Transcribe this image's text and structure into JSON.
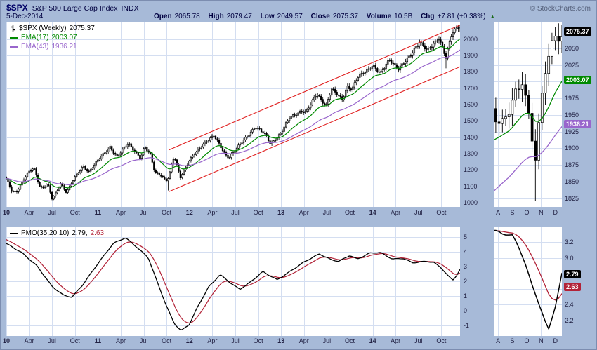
{
  "header": {
    "symbol": "$SPX",
    "name": "S&P 500 Large Cap Index",
    "exchange": "INDX",
    "copyright": "© StockCharts.com",
    "date": "5-Dec-2014",
    "quote": {
      "open_label": "Open",
      "open": "2065.78",
      "high_label": "High",
      "high": "2079.47",
      "low_label": "Low",
      "low": "2049.57",
      "close_label": "Close",
      "close": "2075.37",
      "volume_label": "Volume",
      "volume": "10.5B",
      "chg_label": "Chg",
      "chg": "+7.81 (+0.38%)",
      "arrow": "▲"
    }
  },
  "legend": {
    "price": {
      "title": "$SPX (Weekly)",
      "value": "2075.37"
    },
    "ema17": {
      "label": "EMA(17)",
      "value": "2003.07",
      "color": "#008A00"
    },
    "ema43": {
      "label": "EMA(43)",
      "value": "1936.21",
      "color": "#9966CC"
    },
    "pmo": {
      "label": "PMO(35,20,10)",
      "value": "2.79,",
      "signal_value": "2.63",
      "color": "#000000",
      "signal_color": "#B22237"
    }
  },
  "price_labels": {
    "close": {
      "text": "2075.37",
      "v": 2075.37,
      "bg": "#000000"
    },
    "ema17": {
      "text": "2003.07",
      "v": 2003.07,
      "bg": "#008A00"
    },
    "ema43": {
      "text": "1936.21",
      "v": 1936.21,
      "bg": "#9966CC"
    },
    "pmo": {
      "text": "2.79",
      "v": 2.79,
      "bg": "#000000"
    },
    "pmo_signal": {
      "text": "2.63",
      "v": 2.63,
      "bg": "#B22237"
    }
  },
  "chart_data": [
    {
      "id": "price_main",
      "type": "candlestick",
      "title": "$SPX (Weekly)",
      "x_unit": "months since Jan-2010",
      "x_range": [
        0,
        59.45
      ],
      "ylim": [
        975,
        2105
      ],
      "yticks": [
        2000,
        1900,
        1800,
        1700,
        1600,
        1500,
        1400,
        1300,
        1200,
        1100,
        1000
      ],
      "grid_month_step": 3,
      "xticks": [
        [
          "10",
          0,
          1
        ],
        [
          "Apr",
          3,
          0
        ],
        [
          "Jul",
          6,
          0
        ],
        [
          "Oct",
          9,
          0
        ],
        [
          "11",
          12,
          1
        ],
        [
          "Apr",
          15,
          0
        ],
        [
          "Jul",
          18,
          0
        ],
        [
          "Oct",
          21,
          0
        ],
        [
          "12",
          24,
          1
        ],
        [
          "Apr",
          27,
          0
        ],
        [
          "Jul",
          30,
          0
        ],
        [
          "Oct",
          33,
          0
        ],
        [
          "13",
          36,
          1
        ],
        [
          "Apr",
          39,
          0
        ],
        [
          "Jul",
          42,
          0
        ],
        [
          "Oct",
          45,
          0
        ],
        [
          "14",
          48,
          1
        ],
        [
          "Apr",
          51,
          0
        ],
        [
          "Jul",
          54,
          0
        ],
        [
          "Oct",
          57,
          0
        ]
      ],
      "close_anchors": [
        [
          0,
          1145
        ],
        [
          0.7,
          1074
        ],
        [
          1.3,
          1066
        ],
        [
          2.6,
          1166
        ],
        [
          3.6,
          1217
        ],
        [
          4.3,
          1111
        ],
        [
          4.7,
          1088
        ],
        [
          5.4,
          1118
        ],
        [
          6.0,
          1023
        ],
        [
          6.6,
          1065
        ],
        [
          7.1,
          1122
        ],
        [
          7.9,
          1065
        ],
        [
          8.9,
          1149
        ],
        [
          10.1,
          1226
        ],
        [
          10.8,
          1189
        ],
        [
          12.0,
          1258
        ],
        [
          13.6,
          1343
        ],
        [
          14.5,
          1279
        ],
        [
          16.0,
          1364
        ],
        [
          17.6,
          1272
        ],
        [
          18.1,
          1340
        ],
        [
          18.9,
          1292
        ],
        [
          19.4,
          1199
        ],
        [
          19.7,
          1179
        ],
        [
          20.2,
          1174
        ],
        [
          20.9,
          1131
        ],
        [
          21.3,
          1155
        ],
        [
          21.7,
          1238
        ],
        [
          22.0,
          1285
        ],
        [
          22.8,
          1159
        ],
        [
          24.0,
          1258
        ],
        [
          25.9,
          1366
        ],
        [
          27.2,
          1408
        ],
        [
          28.7,
          1295
        ],
        [
          29.2,
          1278
        ],
        [
          31.3,
          1391
        ],
        [
          32.6,
          1466
        ],
        [
          34.0,
          1412
        ],
        [
          34.6,
          1360
        ],
        [
          36.0,
          1426
        ],
        [
          37.1,
          1518
        ],
        [
          38.6,
          1561
        ],
        [
          39.3,
          1553
        ],
        [
          40.7,
          1667
        ],
        [
          41.9,
          1592
        ],
        [
          42.6,
          1692
        ],
        [
          44.0,
          1633
        ],
        [
          44.7,
          1710
        ],
        [
          45.3,
          1691
        ],
        [
          46.0,
          1762
        ],
        [
          48.0,
          1841
        ],
        [
          49.0,
          1783
        ],
        [
          50.2,
          1878
        ],
        [
          51.4,
          1816
        ],
        [
          52.6,
          1878
        ],
        [
          54.1,
          1985
        ],
        [
          55.2,
          1925
        ],
        [
          56.7,
          2010
        ],
        [
          57.6,
          1887
        ],
        [
          58.4,
          2032
        ],
        [
          59.1,
          2068
        ],
        [
          59.45,
          2075.37
        ]
      ],
      "low_overrides": [
        [
          21.2,
          1075
        ],
        [
          57.55,
          1821
        ]
      ],
      "last_close": 2075.37,
      "overlays": [
        {
          "name": "EMA(17)",
          "period": 17,
          "color": "#008A00",
          "last": 2003.07
        },
        {
          "name": "EMA(43)",
          "period": 43,
          "color": "#9966CC",
          "last": 1936.21
        }
      ],
      "trend_channel": {
        "color": "#E02020",
        "lines": [
          [
            [
              21.3,
              1068
            ],
            [
              59.45,
              1830
            ]
          ],
          [
            [
              21.3,
              1323
            ],
            [
              59.45,
              2085
            ]
          ]
        ]
      }
    },
    {
      "id": "pmo_main",
      "type": "line",
      "title": "PMO(35,20,10)",
      "x_range": [
        0,
        59.45
      ],
      "ylim": [
        -1.7,
        5.7
      ],
      "yticks": [
        5,
        4,
        3,
        2,
        1,
        0,
        -1
      ],
      "grid_month_step": 3,
      "xticks": [
        [
          "10",
          0,
          1
        ],
        [
          "Apr",
          3,
          0
        ],
        [
          "Jul",
          6,
          0
        ],
        [
          "Oct",
          9,
          0
        ],
        [
          "11",
          12,
          1
        ],
        [
          "Apr",
          15,
          0
        ],
        [
          "Jul",
          18,
          0
        ],
        [
          "Oct",
          21,
          0
        ],
        [
          "12",
          24,
          1
        ],
        [
          "Apr",
          27,
          0
        ],
        [
          "Jul",
          30,
          0
        ],
        [
          "Oct",
          33,
          0
        ],
        [
          "13",
          36,
          1
        ],
        [
          "Apr",
          39,
          0
        ],
        [
          "Jul",
          42,
          0
        ],
        [
          "Oct",
          45,
          0
        ],
        [
          "14",
          48,
          1
        ],
        [
          "Apr",
          51,
          0
        ],
        [
          "Jul",
          54,
          0
        ],
        [
          "Oct",
          57,
          0
        ]
      ],
      "anchors": [
        [
          0,
          4.55
        ],
        [
          2,
          3.95
        ],
        [
          4,
          3.05
        ],
        [
          6,
          1.65
        ],
        [
          7.5,
          1.05
        ],
        [
          8.6,
          0.92
        ],
        [
          10,
          1.75
        ],
        [
          12,
          3.2
        ],
        [
          14,
          4.55
        ],
        [
          15.6,
          4.95
        ],
        [
          17,
          4.35
        ],
        [
          18.6,
          3.6
        ],
        [
          19.6,
          2.2
        ],
        [
          21,
          0.3
        ],
        [
          22,
          -0.85
        ],
        [
          22.9,
          -1.35
        ],
        [
          24,
          -0.9
        ],
        [
          25,
          0.2
        ],
        [
          26.5,
          1.6
        ],
        [
          28,
          2.45
        ],
        [
          29.6,
          1.8
        ],
        [
          30.6,
          1.45
        ],
        [
          32,
          1.95
        ],
        [
          33.6,
          2.65
        ],
        [
          35.5,
          2.1
        ],
        [
          37,
          2.6
        ],
        [
          39,
          3.3
        ],
        [
          41,
          3.85
        ],
        [
          42.6,
          3.45
        ],
        [
          43.6,
          3.35
        ],
        [
          45,
          3.75
        ],
        [
          46,
          3.5
        ],
        [
          47.6,
          3.9
        ],
        [
          49,
          3.95
        ],
        [
          50.6,
          3.5
        ],
        [
          52,
          3.55
        ],
        [
          53.2,
          3.25
        ],
        [
          55,
          3.35
        ],
        [
          56,
          3.28
        ],
        [
          57,
          2.9
        ],
        [
          57.9,
          2.35
        ],
        [
          58.5,
          2.08
        ],
        [
          59.0,
          2.4
        ],
        [
          59.45,
          2.79
        ]
      ],
      "signal_period": 10,
      "zero_line": 0,
      "colors": {
        "line": "#000000",
        "signal": "#B22237"
      },
      "last": {
        "pmo": 2.79,
        "signal": 2.63
      }
    },
    {
      "id": "price_mini",
      "type": "candlestick",
      "title": "$SPX zoom Aug-Dec 2014",
      "source": "price_main",
      "x_range": [
        54.75,
        59.45
      ],
      "ylim": [
        1812,
        2090
      ],
      "yticks": [
        2075,
        2050,
        2025,
        2000,
        1975,
        1950,
        1925,
        1900,
        1875,
        1850,
        1825
      ],
      "grid_month_step": 1,
      "xticks": [
        [
          "A",
          55,
          0
        ],
        [
          "S",
          56,
          0
        ],
        [
          "O",
          57,
          0
        ],
        [
          "N",
          58,
          0
        ],
        [
          "D",
          59,
          0
        ]
      ]
    },
    {
      "id": "pmo_mini",
      "type": "line",
      "title": "PMO zoom Aug-Dec 2014",
      "source": "pmo_main",
      "x_range": [
        54.75,
        59.45
      ],
      "ylim": [
        2.0,
        3.4
      ],
      "yticks": [
        3.2,
        3.0,
        2.8,
        2.6,
        2.4,
        2.2
      ],
      "grid_month_step": 1,
      "xticks": [
        [
          "A",
          55,
          0
        ],
        [
          "S",
          56,
          0
        ],
        [
          "O",
          57,
          0
        ],
        [
          "N",
          58,
          0
        ],
        [
          "D",
          59,
          0
        ]
      ]
    }
  ]
}
